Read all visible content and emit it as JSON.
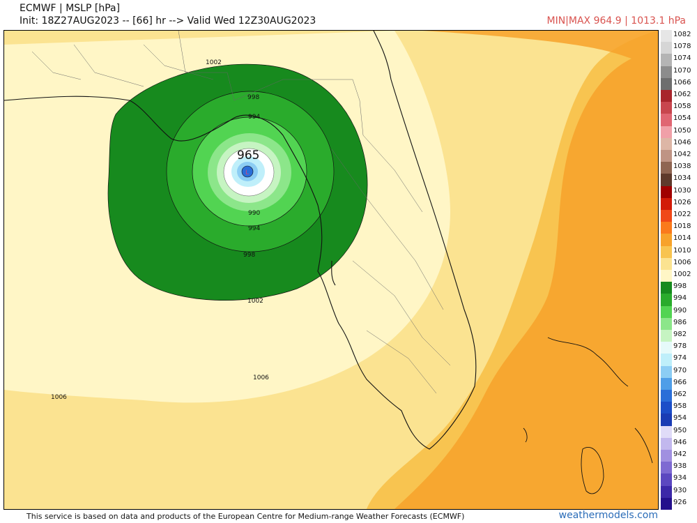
{
  "header": {
    "title": "ECMWF | MSLP [hPa]",
    "init_line": "Init: 18Z27AUG2023 -- [66] hr --> Valid Wed 12Z30AUG2023",
    "minmax": "MIN|MAX 964.9 | 1013.1 hPa"
  },
  "map": {
    "center_label": "965",
    "contour_labels": {
      "c1002_north": "1002",
      "c998_north": "998",
      "c994_north": "994",
      "c990_south": "990",
      "c994_south": "994",
      "c998_south": "998",
      "c1002_south": "1002",
      "c1006_center": "1006",
      "c1006_west": "1006"
    }
  },
  "scale": {
    "levels": [
      {
        "label": "1082",
        "color": "#e6e6e6"
      },
      {
        "label": "1078",
        "color": "#d6d6d6"
      },
      {
        "label": "1074",
        "color": "#b4b4b4"
      },
      {
        "label": "1070",
        "color": "#8c8c8c"
      },
      {
        "label": "1066",
        "color": "#6e6e6e"
      },
      {
        "label": "1062",
        "color": "#a8252c"
      },
      {
        "label": "1058",
        "color": "#c8464e"
      },
      {
        "label": "1054",
        "color": "#e06672"
      },
      {
        "label": "1050",
        "color": "#f0a0a8"
      },
      {
        "label": "1046",
        "color": "#ddb6a6"
      },
      {
        "label": "1042",
        "color": "#bf9484"
      },
      {
        "label": "1038",
        "color": "#8f6552"
      },
      {
        "label": "1034",
        "color": "#5e3a2c"
      },
      {
        "label": "1030",
        "color": "#a00000"
      },
      {
        "label": "1026",
        "color": "#d21b08"
      },
      {
        "label": "1022",
        "color": "#f04818"
      },
      {
        "label": "1018",
        "color": "#fa7a1c"
      },
      {
        "label": "1014",
        "color": "#f7a22a"
      },
      {
        "label": "1010",
        "color": "#f8c450"
      },
      {
        "label": "1006",
        "color": "#fbe391"
      },
      {
        "label": "1002",
        "color": "#fff6c6"
      },
      {
        "label": "998",
        "color": "#178a1e"
      },
      {
        "label": "994",
        "color": "#2aab2c"
      },
      {
        "label": "990",
        "color": "#52d452"
      },
      {
        "label": "986",
        "color": "#8ce68a"
      },
      {
        "label": "982",
        "color": "#c6f4c2"
      },
      {
        "label": "978",
        "color": "#e6fafa"
      },
      {
        "label": "974",
        "color": "#bfeffa"
      },
      {
        "label": "970",
        "color": "#8ccdf4"
      },
      {
        "label": "966",
        "color": "#4f9ee8"
      },
      {
        "label": "962",
        "color": "#2a6ed8"
      },
      {
        "label": "958",
        "color": "#1c4ec8"
      },
      {
        "label": "954",
        "color": "#1a3cb4"
      },
      {
        "label": "950",
        "color": "#e0dcf8"
      },
      {
        "label": "946",
        "color": "#c2b8ee"
      },
      {
        "label": "942",
        "color": "#a090e0"
      },
      {
        "label": "938",
        "color": "#7e6ad2"
      },
      {
        "label": "934",
        "color": "#5c48c0"
      },
      {
        "label": "930",
        "color": "#3c28a8"
      },
      {
        "label": "926",
        "color": "#24108c"
      }
    ]
  },
  "footer": {
    "disclaimer": "This service is based on data and products of the European Centre for Medium-range Weather Forecasts (ECMWF)",
    "brand": "weathermodels.com"
  }
}
